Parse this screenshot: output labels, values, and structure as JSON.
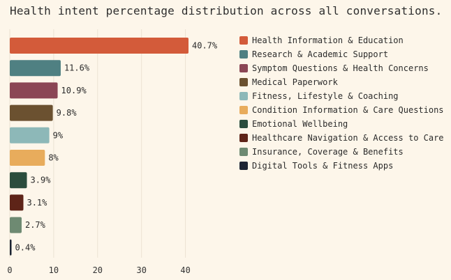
{
  "chart_data": {
    "type": "bar",
    "orientation": "horizontal",
    "title": "Health intent percentage distribution across all conversations.",
    "xlabel": "",
    "ylabel": "",
    "xlim": [
      0,
      45
    ],
    "x_ticks": [
      0,
      10,
      20,
      30,
      40
    ],
    "grid": true,
    "legend_position": "right",
    "categories": [
      "Health Information & Education",
      "Research & Academic Support",
      "Symptom Questions & Health Concerns",
      "Medical Paperwork",
      "Fitness, Lifestyle & Coaching",
      "Condition Information & Care Questions",
      "Emotional Wellbeing",
      "Healthcare Navigation & Access to Care",
      "Insurance, Coverage & Benefits",
      "Digital Tools & Fitness Apps"
    ],
    "values": [
      40.7,
      11.6,
      10.9,
      9.8,
      9,
      8,
      3.9,
      3.1,
      2.7,
      0.4
    ],
    "value_labels": [
      "40.7%",
      "11.6%",
      "10.9%",
      "9.8%",
      "9%",
      "8%",
      "3.9%",
      "3.1%",
      "2.7%",
      "0.4%"
    ],
    "colors": [
      "#d35b3a",
      "#4f8082",
      "#8b4655",
      "#6b5130",
      "#8db8b8",
      "#e8ac5c",
      "#2b4d3d",
      "#5e2418",
      "#6e8a72",
      "#1c2433"
    ]
  }
}
